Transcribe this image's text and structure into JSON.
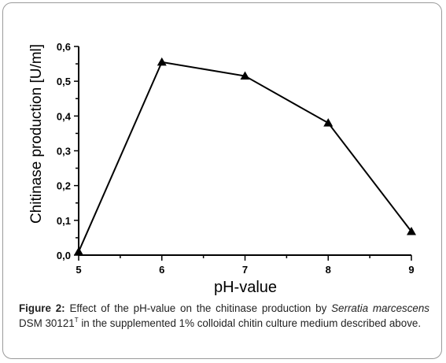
{
  "chart_data": {
    "type": "line",
    "xlabel": "pH-value",
    "ylabel": "Chitinase production [U/ml]",
    "x": [
      5,
      6,
      7,
      8,
      9
    ],
    "y": [
      0.01,
      0.555,
      0.515,
      0.38,
      0.068
    ],
    "xticks": [
      "5",
      "6",
      "7",
      "8",
      "9"
    ],
    "yticks": [
      "0,0",
      "0,1",
      "0,2",
      "0,3",
      "0,4",
      "0,5",
      "0,6"
    ],
    "xlim": [
      5,
      9
    ],
    "ylim": [
      0,
      0.6
    ],
    "marker": "triangle",
    "grid": false,
    "line_color": "#000000"
  },
  "caption": {
    "label": "Figure 2:",
    "text_1": " Effect of the pH-value on the chitinase production by ",
    "organism": "Serratia marcescens",
    "text_2": " DSM 30121",
    "superscript": "T",
    "text_3": " in the supplemented 1% colloidal chitin culture medium described above."
  }
}
